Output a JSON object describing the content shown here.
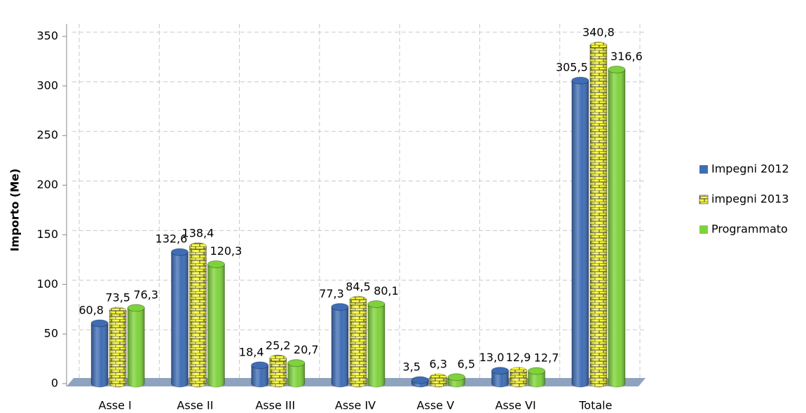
{
  "chart_data": {
    "type": "bar",
    "y_label": "Importo (Me)",
    "categories": [
      "Asse I",
      "Asse II",
      "Asse III",
      "Asse IV",
      "Asse V",
      "Asse VI",
      "Totale"
    ],
    "series": [
      {
        "name": "Impegni 2012",
        "color": "#3e6db5",
        "values": [
          60.8,
          132.6,
          18.4,
          77.3,
          3.5,
          13.0,
          305.5
        ],
        "value_labels": [
          "60,8",
          "132,6",
          "18,4",
          "77,3",
          "3,5",
          "13,0",
          "305,5"
        ]
      },
      {
        "name": "impegni 2013",
        "color": "#ffff33",
        "pattern": "brick",
        "values": [
          73.5,
          138.4,
          25.2,
          84.5,
          6.3,
          12.9,
          340.8
        ],
        "value_labels": [
          "73,5",
          "138,4",
          "25,2",
          "84,5",
          "6,3",
          "12,9",
          "340,8"
        ]
      },
      {
        "name": "Programmato",
        "color": "#7ed23a",
        "values": [
          76.3,
          120.3,
          20.7,
          80.1,
          6.5,
          12.7,
          316.6
        ],
        "value_labels": [
          "76,3",
          "120,3",
          "20,7",
          "80,1",
          "6,5",
          "12,7",
          "316,6"
        ]
      }
    ],
    "ylim": [
      0,
      350
    ],
    "yticks": [
      0,
      50,
      100,
      150,
      200,
      250,
      300,
      350
    ],
    "grid": true,
    "legend": "right"
  }
}
